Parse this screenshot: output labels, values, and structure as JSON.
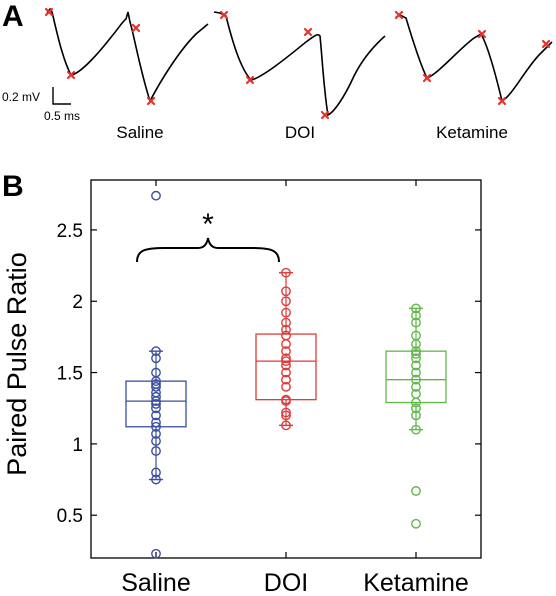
{
  "panel_a": {
    "letter": "A",
    "scale_bar": {
      "voltage_label": "0.2 mV",
      "time_label": "0.5 ms"
    },
    "conditions": [
      "Saline",
      "DOI",
      "Ketamine"
    ],
    "marker_color": "#e8322a",
    "trace_color": "#000000"
  },
  "panel_b": {
    "letter": "B",
    "significance": {
      "symbol": "*",
      "groups": [
        "Saline",
        "DOI"
      ]
    }
  },
  "chart_data": {
    "type": "box",
    "title": "",
    "xlabel": "",
    "ylabel": "Paired Pulse Ratio",
    "ylim": [
      0.2,
      2.85
    ],
    "yticks": [
      0.5,
      1,
      1.5,
      2,
      2.5
    ],
    "ytick_labels": [
      "0.5",
      "1",
      "1.5",
      "2",
      "2.5"
    ],
    "grid": false,
    "categories": [
      "Saline",
      "DOI",
      "Ketamine"
    ],
    "series": [
      {
        "name": "Saline",
        "color": "#3a4fa0",
        "box": {
          "q1": 1.12,
          "median": 1.3,
          "q3": 1.44,
          "whisker_low": 0.75,
          "whisker_high": 1.65
        },
        "points": [
          0.23,
          0.75,
          0.8,
          0.95,
          1.02,
          1.07,
          1.12,
          1.15,
          1.2,
          1.25,
          1.28,
          1.3,
          1.33,
          1.36,
          1.4,
          1.42,
          1.44,
          1.5,
          1.6,
          1.65,
          2.74
        ]
      },
      {
        "name": "DOI",
        "color": "#e03a3a",
        "box": {
          "q1": 1.31,
          "median": 1.58,
          "q3": 1.77,
          "whisker_low": 1.13,
          "whisker_high": 2.2
        },
        "points": [
          1.13,
          1.2,
          1.22,
          1.3,
          1.31,
          1.4,
          1.45,
          1.5,
          1.55,
          1.58,
          1.6,
          1.65,
          1.7,
          1.76,
          1.8,
          1.85,
          1.92,
          2.0,
          2.07,
          2.2
        ]
      },
      {
        "name": "Ketamine",
        "color": "#5fb84a",
        "box": {
          "q1": 1.29,
          "median": 1.45,
          "q3": 1.65,
          "whisker_low": 1.1,
          "whisker_high": 1.95
        },
        "points": [
          0.44,
          0.67,
          1.1,
          1.2,
          1.25,
          1.29,
          1.35,
          1.4,
          1.45,
          1.5,
          1.55,
          1.6,
          1.63,
          1.65,
          1.7,
          1.76,
          1.85,
          1.9,
          1.95
        ]
      }
    ]
  }
}
